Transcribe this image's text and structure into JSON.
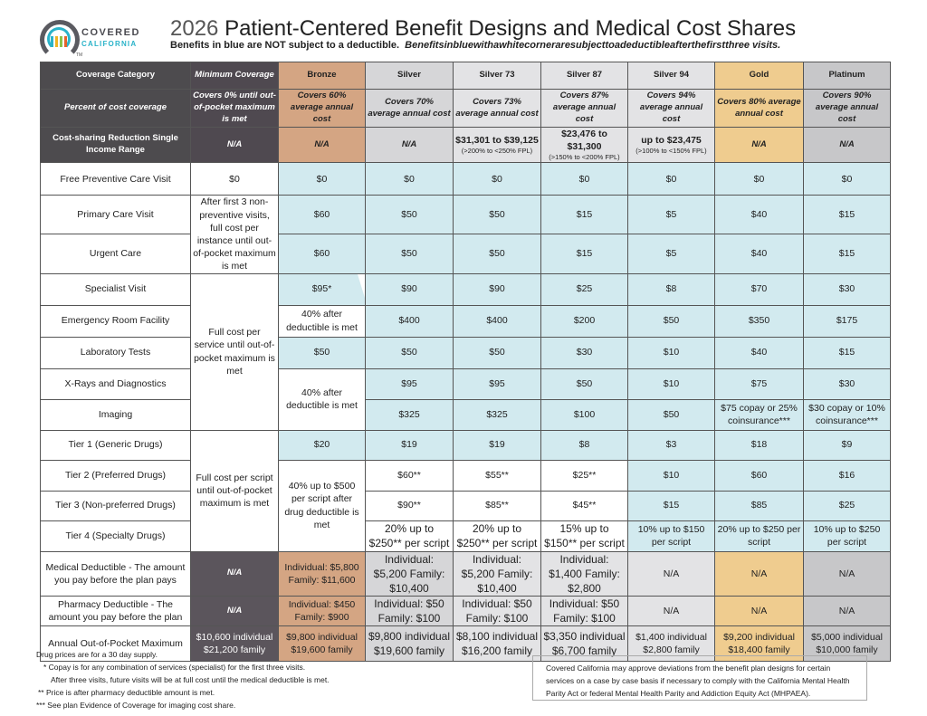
{
  "logo": {
    "line1": "COVERED",
    "line2": "CALIFORNIA",
    "tm": "TM",
    "colors": [
      "#2ab3c9",
      "#f0b323",
      "#8bc34a",
      "#e5632b"
    ]
  },
  "header": {
    "year": "2026",
    "title": "Patient-Centered Benefit Designs and Medical Cost Shares",
    "subtitle_bold": "Benefits in blue are NOT subject to a deductible.",
    "subtitle_italic": "Benefitsinbluewithawhitecorneraresubjecttoadeductibleafterthefirstthree visits."
  },
  "colors": {
    "blue": "#d2eaef",
    "bronze": "#d4a583",
    "silver": "#d6d6d8",
    "gold": "#efcc8f",
    "platinum": "#c7c7c9",
    "header": "#4d4b4e"
  },
  "table": {
    "columns": [
      "Coverage Category",
      "Minimum Coverage",
      "Bronze",
      "Silver",
      "Silver 73",
      "Silver 87",
      "Silver 94",
      "Gold",
      "Platinum"
    ],
    "percent_row": {
      "label": "Percent of cost coverage",
      "values": [
        "Covers 0% until out-of-pocket maximum is met",
        "Covers 60% average annual cost",
        "Covers 70% average annual cost",
        "Covers 73% average annual cost",
        "Covers 87% average annual cost",
        "Covers 94% average annual cost",
        "Covers 80% average annual cost",
        "Covers 90% average annual cost"
      ]
    },
    "csr_row": {
      "label": "Cost-sharing Reduction Single Income Range",
      "values": [
        {
          "main": "N/A"
        },
        {
          "main": "N/A"
        },
        {
          "main": "N/A"
        },
        {
          "main": "$31,301 to $39,125",
          "sub": "(>200% to <250% FPL)"
        },
        {
          "main": "$23,476 to $31,300",
          "sub": "(>150% to <200% FPL)"
        },
        {
          "main": "up to $23,475",
          "sub": "(>100% to <150% FPL)"
        },
        {
          "main": "N/A"
        },
        {
          "main": "N/A"
        }
      ]
    },
    "rows": [
      {
        "label": "Free Preventive Care Visit",
        "cells": [
          {
            "v": "$0",
            "c": "white"
          },
          {
            "v": "$0",
            "c": "blue"
          },
          {
            "v": "$0",
            "c": "blue"
          },
          {
            "v": "$0",
            "c": "blue"
          },
          {
            "v": "$0",
            "c": "blue"
          },
          {
            "v": "$0",
            "c": "blue"
          },
          {
            "v": "$0",
            "c": "blue"
          },
          {
            "v": "$0",
            "c": "blue"
          }
        ]
      },
      {
        "label": "Primary Care Visit",
        "cells": [
          {
            "v": "After first 3 non-preventive visits, full cost per instance until out-of-pocket maximum is met",
            "c": "white",
            "rows": 2
          },
          {
            "v": "$60",
            "c": "blue"
          },
          {
            "v": "$50",
            "c": "blue"
          },
          {
            "v": "$50",
            "c": "blue"
          },
          {
            "v": "$15",
            "c": "blue"
          },
          {
            "v": "$5",
            "c": "blue"
          },
          {
            "v": "$40",
            "c": "blue"
          },
          {
            "v": "$15",
            "c": "blue"
          }
        ]
      },
      {
        "label": "Urgent Care",
        "cells": [
          {
            "v": "$60",
            "c": "blue"
          },
          {
            "v": "$50",
            "c": "blue"
          },
          {
            "v": "$50",
            "c": "blue"
          },
          {
            "v": "$15",
            "c": "blue"
          },
          {
            "v": "$5",
            "c": "blue"
          },
          {
            "v": "$40",
            "c": "blue"
          },
          {
            "v": "$15",
            "c": "blue"
          }
        ]
      },
      {
        "label": "Specialist Visit",
        "cells": [
          {
            "v": "Full cost per service until out-of-pocket maximum is met",
            "c": "white",
            "rows": 5
          },
          {
            "v": "$95*",
            "c": "blue corner"
          },
          {
            "v": "$90",
            "c": "blue"
          },
          {
            "v": "$90",
            "c": "blue"
          },
          {
            "v": "$25",
            "c": "blue"
          },
          {
            "v": "$8",
            "c": "blue"
          },
          {
            "v": "$70",
            "c": "blue"
          },
          {
            "v": "$30",
            "c": "blue"
          }
        ]
      },
      {
        "label": "Emergency Room Facility",
        "cells": [
          {
            "v": "40% after deductible is met",
            "c": "white"
          },
          {
            "v": "$400",
            "c": "blue"
          },
          {
            "v": "$400",
            "c": "blue"
          },
          {
            "v": "$200",
            "c": "blue"
          },
          {
            "v": "$50",
            "c": "blue"
          },
          {
            "v": "$350",
            "c": "blue"
          },
          {
            "v": "$175",
            "c": "blue"
          }
        ]
      },
      {
        "label": "Laboratory Tests",
        "cells": [
          {
            "v": "$50",
            "c": "blue"
          },
          {
            "v": "$50",
            "c": "blue"
          },
          {
            "v": "$50",
            "c": "blue"
          },
          {
            "v": "$30",
            "c": "blue"
          },
          {
            "v": "$10",
            "c": "blue"
          },
          {
            "v": "$40",
            "c": "blue"
          },
          {
            "v": "$15",
            "c": "blue"
          }
        ]
      },
      {
        "label": "X-Rays and Diagnostics",
        "cells": [
          {
            "v": "40% after deductible is met",
            "c": "white",
            "rows": 2
          },
          {
            "v": "$95",
            "c": "blue"
          },
          {
            "v": "$95",
            "c": "blue"
          },
          {
            "v": "$50",
            "c": "blue"
          },
          {
            "v": "$10",
            "c": "blue"
          },
          {
            "v": "$75",
            "c": "blue"
          },
          {
            "v": "$30",
            "c": "blue"
          }
        ]
      },
      {
        "label": "Imaging",
        "cells": [
          {
            "v": "$325",
            "c": "blue"
          },
          {
            "v": "$325",
            "c": "blue"
          },
          {
            "v": "$100",
            "c": "blue"
          },
          {
            "v": "$50",
            "c": "blue"
          },
          {
            "v": "$75 copay or 25% coinsurance***",
            "c": "blue"
          },
          {
            "v": "$30 copay or 10% coinsurance***",
            "c": "blue"
          }
        ]
      },
      {
        "label": "Tier 1 (Generic Drugs)",
        "cells": [
          {
            "v": "Full cost per script until out-of-pocket maximum is met",
            "c": "white",
            "rows": 4
          },
          {
            "v": "$20",
            "c": "blue"
          },
          {
            "v": "$19",
            "c": "blue"
          },
          {
            "v": "$19",
            "c": "blue"
          },
          {
            "v": "$8",
            "c": "blue"
          },
          {
            "v": "$3",
            "c": "blue"
          },
          {
            "v": "$18",
            "c": "blue"
          },
          {
            "v": "$9",
            "c": "blue"
          }
        ]
      },
      {
        "label": "Tier 2 (Preferred Drugs)",
        "cells": [
          {
            "v": "40% up to $500 per script after drug deductible is met",
            "c": "white",
            "rows": 3
          },
          {
            "v": "$60**",
            "c": "white"
          },
          {
            "v": "$55**",
            "c": "white"
          },
          {
            "v": "$25**",
            "c": "white"
          },
          {
            "v": "$10",
            "c": "blue"
          },
          {
            "v": "$60",
            "c": "blue"
          },
          {
            "v": "$16",
            "c": "blue"
          }
        ]
      },
      {
        "label": "Tier 3 (Non-preferred Drugs)",
        "cells": [
          {
            "v": "$90**",
            "c": "white"
          },
          {
            "v": "$85**",
            "c": "white"
          },
          {
            "v": "$45**",
            "c": "white"
          },
          {
            "v": "$15",
            "c": "blue"
          },
          {
            "v": "$85",
            "c": "blue"
          },
          {
            "v": "$25",
            "c": "blue"
          }
        ]
      },
      {
        "label": "Tier 4 (Specialty Drugs)",
        "cells": [
          {
            "v": "20% up to $250** per script",
            "c": "white big"
          },
          {
            "v": "20% up to $250** per script",
            "c": "white big"
          },
          {
            "v": "15% up to $150** per script",
            "c": "white big"
          },
          {
            "v": "10% up to $150 per script",
            "c": "blue"
          },
          {
            "v": "20% up to $250 per script",
            "c": "blue"
          },
          {
            "v": "10% up to $250 per script",
            "c": "blue"
          }
        ]
      },
      {
        "label": "Medical Deductible - The amount you pay before the plan pays",
        "cells": [
          {
            "v": "N/A",
            "c": "c-min ital"
          },
          {
            "v": "Individual: $5,800 Family: $11,600",
            "c": "c-bronze"
          },
          {
            "v": "Individual: $5,200 Family: $10,400",
            "c": "c-silver big"
          },
          {
            "v": "Individual: $5,200 Family: $10,400",
            "c": "c-silverx big"
          },
          {
            "v": "Individual: $1,400 Family: $2,800",
            "c": "c-silverx big"
          },
          {
            "v": "N/A",
            "c": "c-silverx"
          },
          {
            "v": "N/A",
            "c": "c-gold"
          },
          {
            "v": "N/A",
            "c": "c-plat"
          }
        ]
      },
      {
        "label": "Pharmacy Deductible - The amount you pay before the plan",
        "cells": [
          {
            "v": "N/A",
            "c": "c-min ital"
          },
          {
            "v": "Individual: $450 Family: $900",
            "c": "c-bronze"
          },
          {
            "v": "Individual: $50 Family: $100",
            "c": "c-silver big"
          },
          {
            "v": "Individual: $50 Family: $100",
            "c": "c-silverx big"
          },
          {
            "v": "Individual: $50 Family: $100",
            "c": "c-silverx big"
          },
          {
            "v": "N/A",
            "c": "c-silverx"
          },
          {
            "v": "N/A",
            "c": "c-gold"
          },
          {
            "v": "N/A",
            "c": "c-plat"
          }
        ]
      },
      {
        "label": "Annual Out-of-Pocket Maximum",
        "cells": [
          {
            "v": "$10,600 individual $21,200 family",
            "c": "c-min"
          },
          {
            "v": "$9,800 individual $19,600 family",
            "c": "c-bronze"
          },
          {
            "v": "$9,800 individual $19,600 family",
            "c": "c-silver big"
          },
          {
            "v": "$8,100 individual $16,200 family",
            "c": "c-silverx big"
          },
          {
            "v": "$3,350 individual $6,700 family",
            "c": "c-silverx big"
          },
          {
            "v": "$1,400 individual $2,800 family",
            "c": "c-silverx"
          },
          {
            "v": "$9,200 individual $18,400 family",
            "c": "c-gold"
          },
          {
            "v": "$5,000 individual $10,000 family",
            "c": "c-plat"
          }
        ]
      }
    ]
  },
  "notes": [
    "Drug prices are for a 30 day supply.",
    "* Copay is for any combination of services (specialist) for the first three visits.",
    "After three visits, future visits will be at full cost until the medical deductible is met.",
    "** Price is after pharmacy deductible amount is met.",
    "*** See plan Evidence of Coverage for imaging cost share."
  ],
  "disclaimer": "Covered California may approve deviations from the benefit plan designs for certain services on a case by case basis if necessary to comply with the California Mental Health Parity Act or federal Mental Health Parity and Addiction Equity Act (MHPAEA)."
}
